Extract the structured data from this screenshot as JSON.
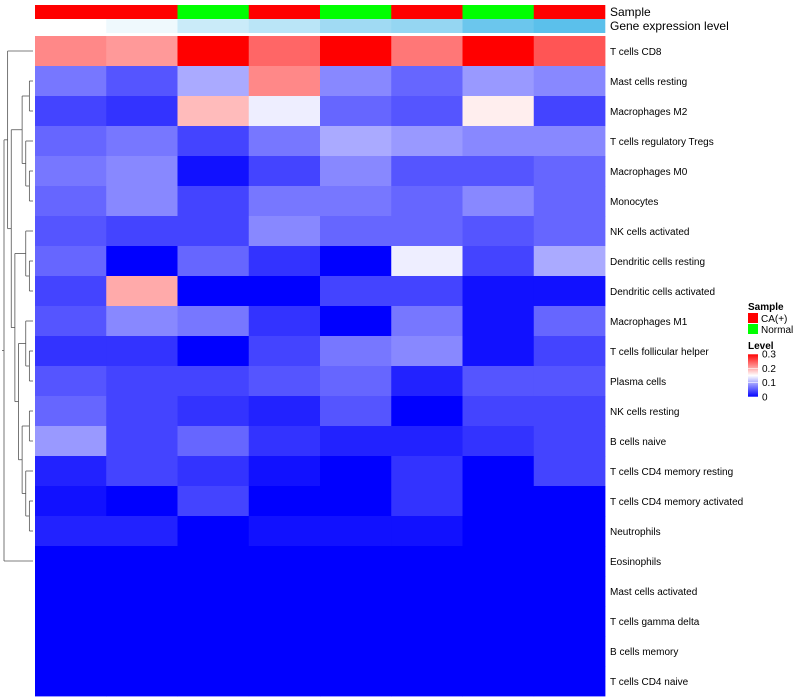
{
  "chart_data": {
    "type": "heatmap",
    "annotation_rows": [
      "Sample",
      "Gene expression level"
    ],
    "columns": [
      {
        "sample": "CA(+)",
        "expression": 0.02
      },
      {
        "sample": "CA(+)",
        "expression": 0.05
      },
      {
        "sample": "Normal",
        "expression": 0.12
      },
      {
        "sample": "CA(+)",
        "expression": 0.15
      },
      {
        "sample": "Normal",
        "expression": 0.2
      },
      {
        "sample": "CA(+)",
        "expression": 0.22
      },
      {
        "sample": "Normal",
        "expression": 0.3
      },
      {
        "sample": "CA(+)",
        "expression": 0.33
      }
    ],
    "expression_colors": [
      "#ffffff",
      "#5bc0eb"
    ],
    "rows": [
      "T cells CD8",
      "Mast cells resting",
      "Macrophages M2",
      "T cells regulatory  Tregs",
      "Macrophages M0",
      "Monocytes",
      "NK cells activated",
      "Dendritic cells resting",
      "Dendritic cells activated",
      "Macrophages M1",
      "T cells follicular helper",
      "Plasma cells",
      "NK cells resting",
      "B cells naive",
      "T cells CD4 memory resting",
      "T cells CD4 memory activated",
      "Neutrophils",
      "Eosinophils",
      "Mast cells activated",
      "T cells gamma delta",
      "B cells memory",
      "T cells CD4 naive"
    ],
    "values": [
      [
        0.22,
        0.21,
        0.3,
        0.24,
        0.3,
        0.23,
        0.3,
        0.25
      ],
      [
        0.07,
        0.05,
        0.1,
        0.22,
        0.08,
        0.06,
        0.09,
        0.08
      ],
      [
        0.04,
        0.03,
        0.19,
        0.14,
        0.06,
        0.05,
        0.16,
        0.04
      ],
      [
        0.06,
        0.07,
        0.04,
        0.07,
        0.1,
        0.09,
        0.08,
        0.08
      ],
      [
        0.07,
        0.08,
        0.01,
        0.04,
        0.08,
        0.05,
        0.05,
        0.06
      ],
      [
        0.06,
        0.08,
        0.04,
        0.07,
        0.07,
        0.06,
        0.08,
        0.06
      ],
      [
        0.05,
        0.04,
        0.04,
        0.08,
        0.06,
        0.06,
        0.05,
        0.06
      ],
      [
        0.06,
        0.0,
        0.06,
        0.03,
        0.0,
        0.14,
        0.04,
        0.1
      ],
      [
        0.04,
        0.2,
        0.0,
        0.0,
        0.04,
        0.04,
        0.01,
        0.01
      ],
      [
        0.05,
        0.08,
        0.07,
        0.03,
        0.0,
        0.07,
        0.01,
        0.06
      ],
      [
        0.03,
        0.03,
        0.0,
        0.04,
        0.07,
        0.08,
        0.01,
        0.04
      ],
      [
        0.05,
        0.04,
        0.04,
        0.05,
        0.06,
        0.02,
        0.05,
        0.05
      ],
      [
        0.06,
        0.04,
        0.03,
        0.02,
        0.05,
        0.0,
        0.04,
        0.04
      ],
      [
        0.09,
        0.04,
        0.06,
        0.03,
        0.02,
        0.02,
        0.03,
        0.04
      ],
      [
        0.02,
        0.04,
        0.03,
        0.01,
        0.0,
        0.03,
        0.0,
        0.04
      ],
      [
        0.01,
        0.0,
        0.04,
        0.0,
        0.0,
        0.03,
        0.0,
        0.0
      ],
      [
        0.02,
        0.02,
        0.0,
        0.01,
        0.01,
        0.01,
        0.0,
        0.0
      ],
      [
        0.0,
        0.0,
        0.0,
        0.0,
        0.0,
        0.0,
        0.0,
        0.0
      ],
      [
        0.0,
        0.0,
        0.0,
        0.0,
        0.0,
        0.0,
        0.0,
        0.0
      ],
      [
        0.0,
        0.0,
        0.0,
        0.0,
        0.0,
        0.0,
        0.0,
        0.0
      ],
      [
        0.0,
        0.0,
        0.0,
        0.0,
        0.0,
        0.0,
        0.0,
        0.0
      ],
      [
        0.0,
        0.0,
        0.0,
        0.0,
        0.0,
        0.0,
        0.0,
        0.0
      ]
    ],
    "color_scale": {
      "min": 0,
      "mid": 0.15,
      "max": 0.3,
      "colors": [
        "#0000ff",
        "#ffffff",
        "#ff0000"
      ]
    },
    "legend": {
      "placement": "right",
      "sample_title": "Sample",
      "sample_entries": [
        {
          "label": "CA(+)",
          "color": "#ff0000"
        },
        {
          "label": "Normal",
          "color": "#00ff00"
        }
      ],
      "level_title": "Level",
      "level_ticks": [
        "0.3",
        "0.2",
        "0.1",
        "0"
      ],
      "level_tick_values": [
        0.3,
        0.2,
        0.1,
        0
      ]
    },
    "row_dendrogram": true,
    "grid": false
  }
}
